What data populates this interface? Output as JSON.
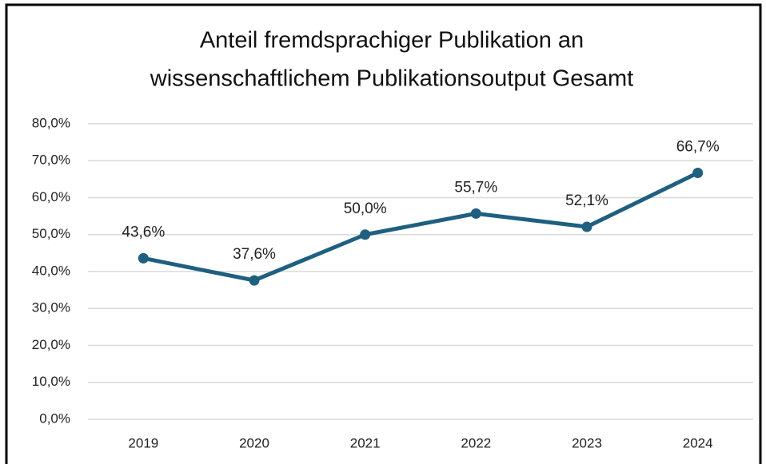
{
  "chart_data": {
    "type": "line",
    "title": [
      "Anteil fremdsprachiger Publikation an",
      "wissenschaftlichem Publikationsoutput Gesamt"
    ],
    "categories": [
      "2019",
      "2020",
      "2021",
      "2022",
      "2023",
      "2024"
    ],
    "series": [
      {
        "color": "#1f5f80",
        "values": [
          43.6,
          37.6,
          50.0,
          55.7,
          52.1,
          66.7
        ],
        "value_labels": [
          "43,6%",
          "37,6%",
          "50,0%",
          "55,7%",
          "52,1%",
          "66,7%"
        ]
      }
    ],
    "ylim": [
      0,
      80
    ],
    "yticks": [
      {
        "value": 0,
        "label": "0,0%"
      },
      {
        "value": 10,
        "label": "10,0%"
      },
      {
        "value": 20,
        "label": "20,0%"
      },
      {
        "value": 30,
        "label": "30,0%"
      },
      {
        "value": 40,
        "label": "40,0%"
      },
      {
        "value": 50,
        "label": "50,0%"
      },
      {
        "value": 60,
        "label": "60,0%"
      },
      {
        "value": 70,
        "label": "70,0%"
      },
      {
        "value": 80,
        "label": "80,0%"
      }
    ],
    "grid": true
  }
}
